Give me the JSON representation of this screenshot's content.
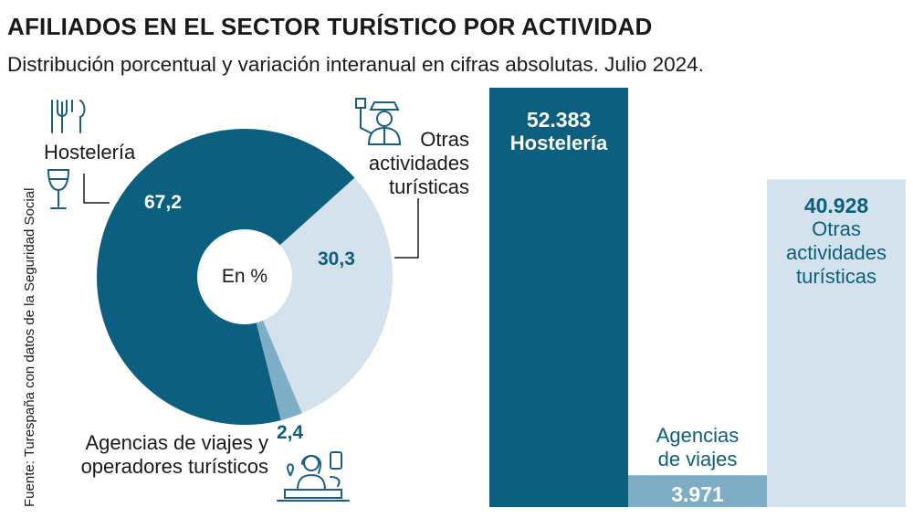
{
  "header": {
    "title": "AFILIADOS EN EL SECTOR TURÍSTICO POR ACTIVIDAD",
    "subtitle": "Distribución porcentual y variación interanual en cifras absolutas. Julio 2024."
  },
  "source": "Fuente: Turespaña con datos de la Seguridad Social",
  "colors": {
    "dark": "#0c5f7e",
    "light": "#d3e2ec",
    "mid": "#7eaec6",
    "text": "#1a1a1a"
  },
  "chart_data": [
    {
      "type": "pie",
      "center_label": "En %",
      "slices": [
        {
          "label": "Hostelería",
          "value": 67.2,
          "value_label": "67,2",
          "color": "#0c5f7e",
          "icon": "restaurant-cutlery-glass-icon"
        },
        {
          "label": "Otras actividades turísticas",
          "value": 30.3,
          "value_label": "30,3",
          "color": "#d3e2ec",
          "icon": "tourist-guide-icon"
        },
        {
          "label": "Agencias de viajes y operadores turísticos",
          "value": 2.4,
          "value_label": "2,4",
          "color": "#7eaec6",
          "icon": "travel-agent-desk-icon"
        }
      ]
    },
    {
      "type": "bar",
      "categories": [
        "Hostelería",
        "Agencias de viajes",
        "Otras actividades turísticas"
      ],
      "values": [
        52383,
        3971,
        40928
      ],
      "value_labels": [
        "52.383",
        "3.971",
        "40.928"
      ],
      "colors": [
        "#0c5f7e",
        "#7eaec6",
        "#d3e2ec"
      ],
      "ylim": [
        0,
        52383
      ]
    }
  ]
}
